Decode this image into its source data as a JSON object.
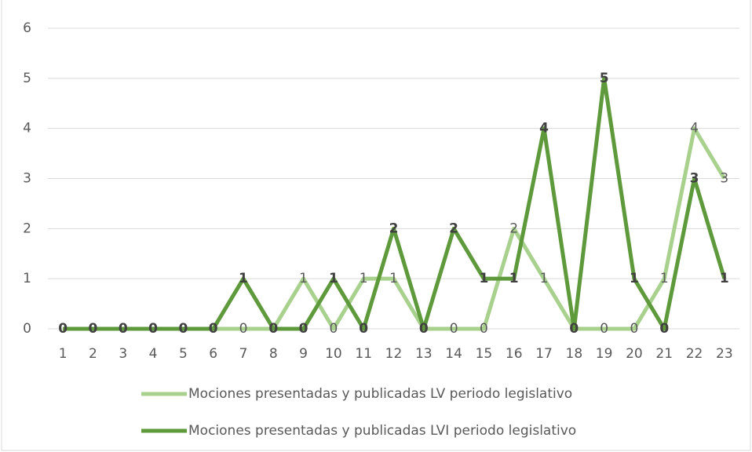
{
  "chart_data": {
    "type": "line",
    "categories": [
      1,
      2,
      3,
      4,
      5,
      6,
      7,
      8,
      9,
      10,
      11,
      12,
      13,
      14,
      15,
      16,
      17,
      18,
      19,
      20,
      21,
      22,
      23
    ],
    "series": [
      {
        "name": "Mociones presentadas y publicadas LV periodo legislativo",
        "color": "#a9d18e",
        "values": [
          0,
          0,
          0,
          0,
          0,
          0,
          0,
          0,
          1,
          0,
          1,
          1,
          0,
          0,
          0,
          2,
          1,
          0,
          0,
          0,
          1,
          4,
          3
        ]
      },
      {
        "name": "Mociones presentadas y publicadas LVI periodo legislativo",
        "color": "#5e9a3b",
        "values": [
          0,
          0,
          0,
          0,
          0,
          0,
          1,
          0,
          0,
          1,
          0,
          2,
          0,
          2,
          1,
          1,
          4,
          0,
          5,
          1,
          0,
          3,
          1
        ]
      }
    ],
    "ylim": [
      0,
      6
    ],
    "yticks": [
      0,
      1,
      2,
      3,
      4,
      5,
      6
    ],
    "grid": true,
    "legend": "bottom"
  }
}
